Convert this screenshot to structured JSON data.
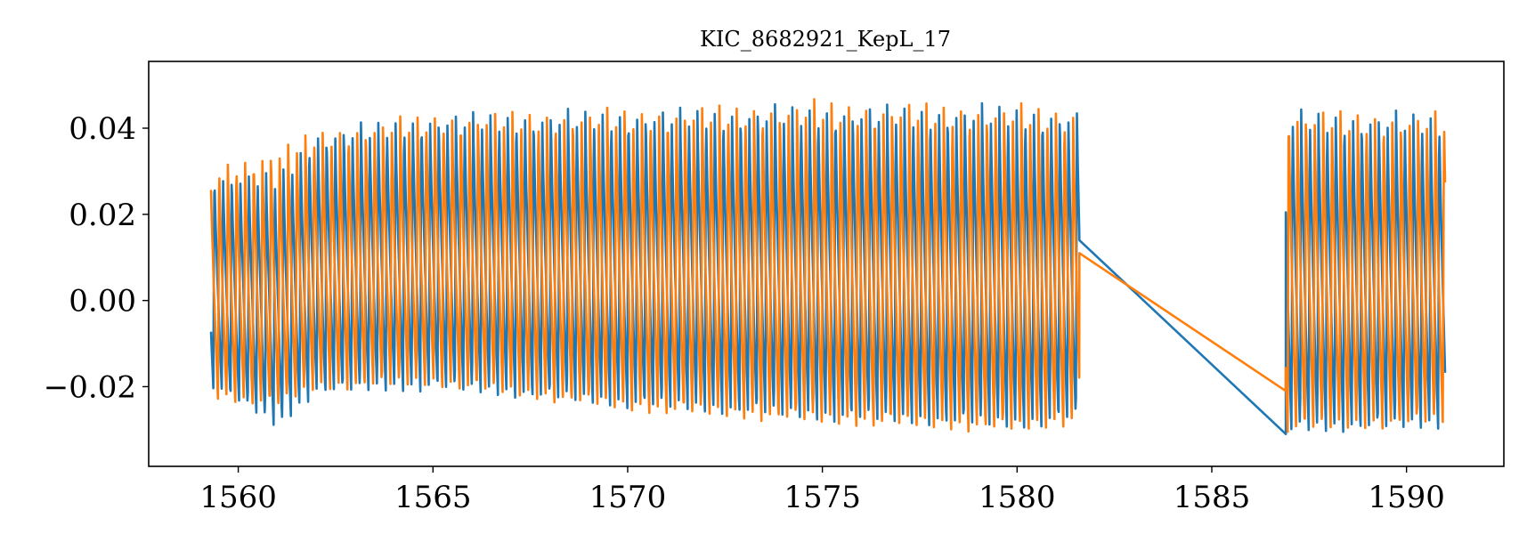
{
  "chart_data": {
    "type": "line",
    "title": "KIC_8682921_KepL_17",
    "xlabel": "",
    "ylabel": "",
    "xlim": [
      1557.7,
      1592.5
    ],
    "ylim": [
      -0.0385,
      0.0555
    ],
    "xticks": [
      1560,
      1565,
      1570,
      1575,
      1580,
      1585,
      1590
    ],
    "xtick_labels": [
      "1560",
      "1565",
      "1570",
      "1575",
      "1580",
      "1585",
      "1590"
    ],
    "yticks": [
      -0.02,
      0.0,
      0.02,
      0.04
    ],
    "ytick_labels": [
      "−0.02",
      "0.00",
      "0.02",
      "0.04"
    ],
    "grid": false,
    "legend": "none",
    "gap": [
      1581.6,
      1586.9
    ],
    "series": [
      {
        "color": "#1f77b4",
        "period": 0.2215,
        "phase": 0.0,
        "envelope": [
          [
            1559.3,
            0.03,
            -0.02
          ],
          [
            1561.0,
            0.03,
            -0.03
          ],
          [
            1562.0,
            0.04,
            -0.022
          ],
          [
            1565.0,
            0.044,
            -0.021
          ],
          [
            1570.0,
            0.045,
            -0.025
          ],
          [
            1575.0,
            0.046,
            -0.028
          ],
          [
            1580.0,
            0.046,
            -0.03
          ],
          [
            1581.6,
            0.045,
            -0.028
          ],
          [
            1586.9,
            0.045,
            -0.031
          ],
          [
            1591.0,
            0.044,
            -0.03
          ]
        ],
        "gap_line": [
          [
            1581.6,
            0.014
          ],
          [
            1586.9,
            -0.031
          ]
        ]
      },
      {
        "color": "#ff7f0e",
        "period": 0.2215,
        "phase": 0.45,
        "envelope": [
          [
            1559.3,
            0.032,
            -0.023
          ],
          [
            1561.0,
            0.036,
            -0.025
          ],
          [
            1562.0,
            0.04,
            -0.021
          ],
          [
            1565.0,
            0.044,
            -0.02
          ],
          [
            1570.0,
            0.045,
            -0.026
          ],
          [
            1575.0,
            0.047,
            -0.029
          ],
          [
            1580.0,
            0.046,
            -0.031
          ],
          [
            1581.6,
            0.045,
            -0.029
          ],
          [
            1586.9,
            0.045,
            -0.031
          ],
          [
            1591.0,
            0.044,
            -0.029
          ]
        ],
        "gap_line": [
          [
            1581.6,
            0.011
          ],
          [
            1586.9,
            -0.021
          ]
        ]
      }
    ]
  }
}
